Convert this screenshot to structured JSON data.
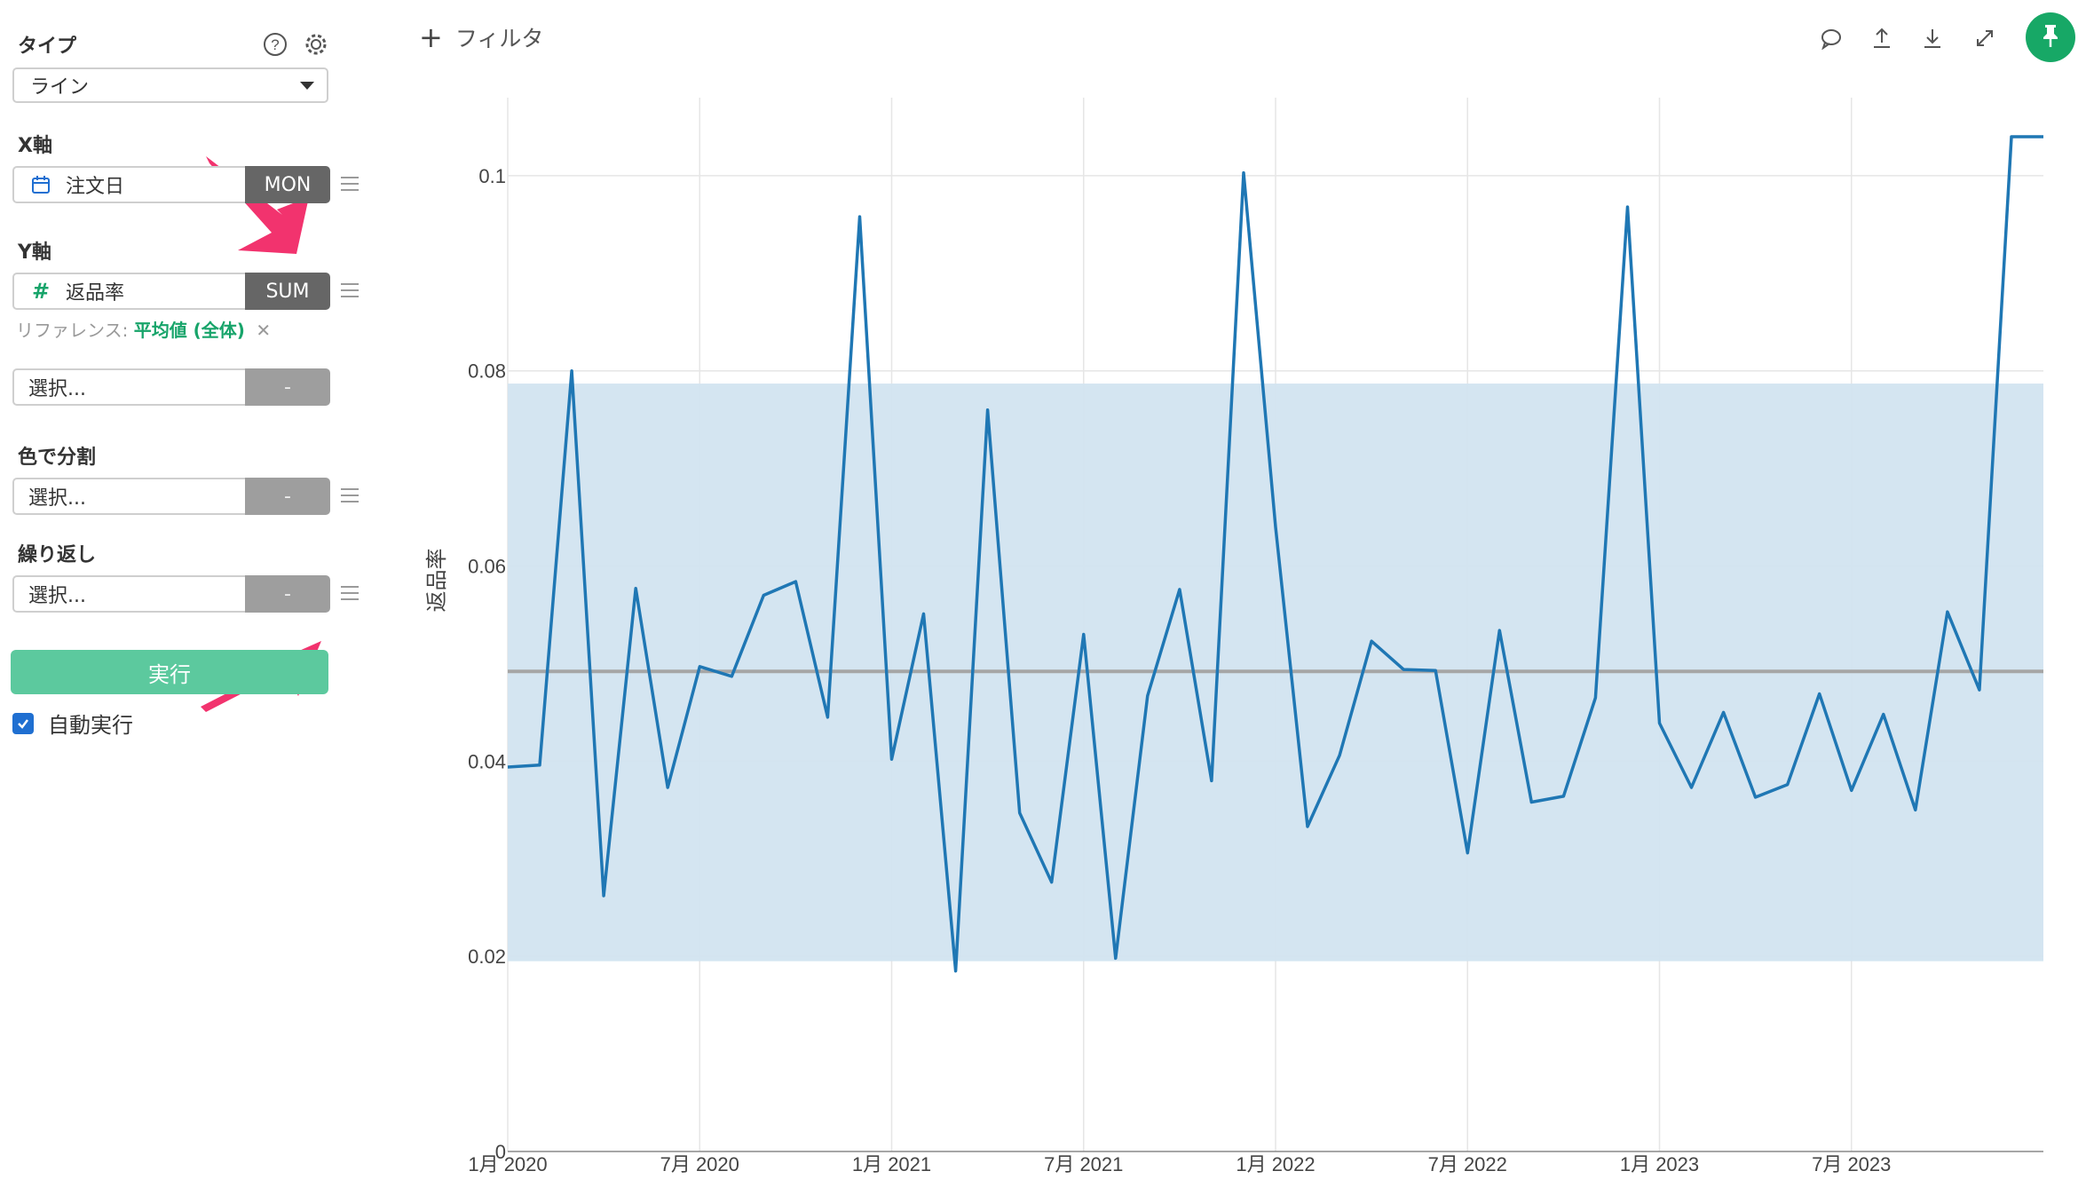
{
  "sidebar": {
    "type_label": "タイプ",
    "type_value": "ライン",
    "x_axis_label": "X軸",
    "x_field": "注文日",
    "x_agg": "MON",
    "y_axis_label": "Y軸",
    "y_field": "返品率",
    "y_agg": "SUM",
    "reference_label": "リファレンス:",
    "reference_value": "平均値 (全体)",
    "reference_remove": "✕",
    "extra_select": "選択...",
    "extra_agg": "-",
    "color_split_label": "色で分割",
    "color_split_select": "選択...",
    "color_split_agg": "-",
    "repeat_label": "繰り返し",
    "repeat_select": "選択...",
    "repeat_agg": "-",
    "run_button": "実行",
    "auto_run_label": "自動実行",
    "auto_run_checked": true
  },
  "toolbar": {
    "filter_label": "フィルタ",
    "icons": [
      "comment-icon",
      "upload-icon",
      "download-icon",
      "expand-icon",
      "pin-icon"
    ],
    "pin_color": "#17a866"
  },
  "chart_data": {
    "type": "line",
    "ylabel": "返品率",
    "xlabel": "",
    "ylim": [
      0,
      0.108
    ],
    "yticks": [
      0,
      0.02,
      0.04,
      0.06,
      0.08,
      0.1
    ],
    "ytick_labels": [
      "0",
      "0.02",
      "0.04",
      "0.06",
      "0.08",
      "0.1"
    ],
    "xtick_labels": [
      "1月 2020",
      "7月 2020",
      "1月 2021",
      "7月 2021",
      "1月 2022",
      "7月 2022",
      "1月 2023",
      "7月 2023"
    ],
    "xtick_month_index": [
      0,
      6,
      12,
      18,
      24,
      30,
      36,
      42
    ],
    "x": [
      "2020-01",
      "2020-02",
      "2020-03",
      "2020-04",
      "2020-05",
      "2020-06",
      "2020-07",
      "2020-08",
      "2020-09",
      "2020-10",
      "2020-11",
      "2020-12",
      "2021-01",
      "2021-02",
      "2021-03",
      "2021-04",
      "2021-05",
      "2021-06",
      "2021-07",
      "2021-08",
      "2021-09",
      "2021-10",
      "2021-11",
      "2021-12",
      "2022-01",
      "2022-02",
      "2022-03",
      "2022-04",
      "2022-05",
      "2022-06",
      "2022-07",
      "2022-08",
      "2022-09",
      "2022-10",
      "2022-11",
      "2022-12",
      "2023-01",
      "2023-02",
      "2023-03",
      "2023-04",
      "2023-05",
      "2023-06",
      "2023-07",
      "2023-08",
      "2023-09",
      "2023-10",
      "2023-11",
      "2023-12",
      "2024-01"
    ],
    "series": [
      {
        "color": "#1f77b4",
        "values": [
          0.0394,
          0.0396,
          0.08,
          0.0262,
          0.0577,
          0.0373,
          0.0497,
          0.0487,
          0.057,
          0.0584,
          0.0445,
          0.0958,
          0.0402,
          0.0551,
          0.0185,
          0.076,
          0.0347,
          0.0276,
          0.053,
          0.0198,
          0.0467,
          0.0576,
          0.038,
          0.1003,
          0.064,
          0.0333,
          0.0406,
          0.0523,
          0.0494,
          0.0493,
          0.0306,
          0.0534,
          0.0358,
          0.0364,
          0.0465,
          0.0968,
          0.0439,
          0.0373,
          0.045,
          0.0363,
          0.0376,
          0.0469,
          0.037,
          0.0448,
          0.035,
          0.0553,
          0.0473,
          0.104,
          0.104
        ]
      }
    ],
    "reference_line": {
      "label": "平均値 (全体)",
      "value": 0.0492,
      "color": "#a6a6a6"
    },
    "reference_band": {
      "low": 0.0195,
      "high": 0.0787,
      "color": "#d2e4f0"
    },
    "grid": true
  }
}
